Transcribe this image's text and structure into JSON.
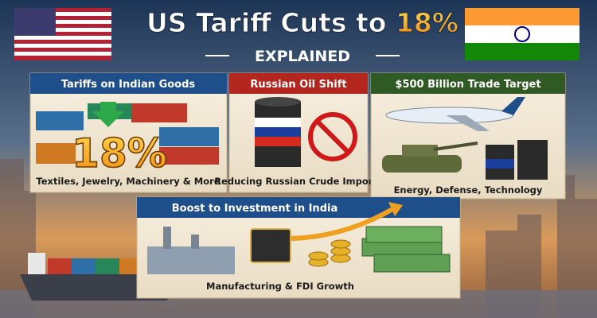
{
  "title": {
    "text": "US Tariff Cuts to",
    "highlight": "18%"
  },
  "subtitle": "EXPLAINED",
  "panels": [
    {
      "header": "Tariffs on Indian Goods",
      "figure": "18%",
      "caption": "Textiles, Jewelry, Machinery & More"
    },
    {
      "header": "Russian Oil Shift",
      "caption": "Reducing Russian Crude Imports"
    },
    {
      "header": "$500 Billion Trade Target",
      "caption": "Energy, Defense, Technology"
    },
    {
      "header": "Boost to Investment in India",
      "caption": "Manufacturing & FDI Growth"
    }
  ]
}
